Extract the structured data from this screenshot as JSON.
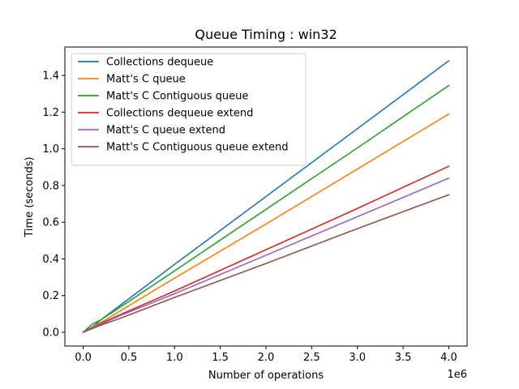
{
  "chart_data": {
    "type": "line",
    "title": "Queue Timing : win32",
    "xlabel": "Number of operations",
    "ylabel": "Time (seconds)",
    "x_offset_label": "1e6",
    "xlim": [
      -200000,
      4200000
    ],
    "ylim": [
      -0.075,
      1.555
    ],
    "x_ticks": [
      0,
      500000,
      1000000,
      1500000,
      2000000,
      2500000,
      3000000,
      3500000,
      4000000
    ],
    "x_tick_labels": [
      "0.0",
      "0.5",
      "1.0",
      "1.5",
      "2.0",
      "2.5",
      "3.0",
      "3.5",
      "4.0"
    ],
    "y_ticks": [
      0.0,
      0.2,
      0.4,
      0.6,
      0.8,
      1.0,
      1.2,
      1.4
    ],
    "y_tick_labels": [
      "0.0",
      "0.2",
      "0.4",
      "0.6",
      "0.8",
      "1.0",
      "1.2",
      "1.4"
    ],
    "grid": false,
    "legend_position": "top-left",
    "x": [
      0,
      100000,
      200000,
      400000,
      1000000,
      2000000,
      3000000,
      4000000
    ],
    "series": [
      {
        "name": "Collections dequeue",
        "color": "#1f77b4",
        "values": [
          0.0,
          0.03,
          0.07,
          0.145,
          0.37,
          0.74,
          1.11,
          1.48
        ]
      },
      {
        "name": "Matt's C queue",
        "color": "#ff7f0e",
        "values": [
          0.0,
          0.03,
          0.055,
          0.115,
          0.295,
          0.59,
          0.89,
          1.19
        ]
      },
      {
        "name": "Matt's C Contiguous queue",
        "color": "#2ca02c",
        "values": [
          0.0,
          0.045,
          0.07,
          0.135,
          0.335,
          0.67,
          1.005,
          1.345
        ]
      },
      {
        "name": "Collections dequeue extend",
        "color": "#d62728",
        "values": [
          0.0,
          0.025,
          0.05,
          0.095,
          0.225,
          0.45,
          0.675,
          0.905
        ]
      },
      {
        "name": "Matt's C queue extend",
        "color": "#9467bd",
        "values": [
          0.0,
          0.025,
          0.045,
          0.09,
          0.21,
          0.42,
          0.63,
          0.84
        ]
      },
      {
        "name": "Matt's C Contiguous queue extend",
        "color": "#8c564b",
        "values": [
          0.0,
          0.02,
          0.04,
          0.075,
          0.19,
          0.375,
          0.565,
          0.75
        ]
      }
    ]
  }
}
